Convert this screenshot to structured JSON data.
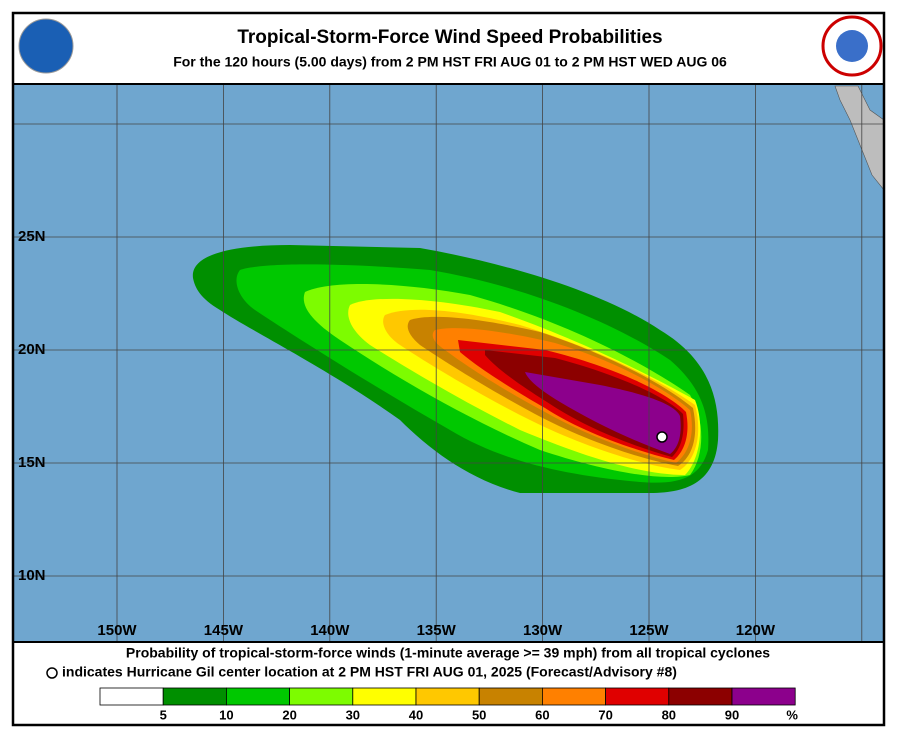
{
  "header": {
    "title": "Tropical-Storm-Force Wind Speed Probabilities",
    "subtitle": "For the 120 hours (5.00 days) from 2 PM HST FRI AUG 01 to 2 PM HST WED AUG 06"
  },
  "map": {
    "lat_labels": [
      "25N",
      "20N",
      "15N",
      "10N"
    ],
    "lon_labels": [
      "150W",
      "145W",
      "140W",
      "135W",
      "130W",
      "125W",
      "120W"
    ]
  },
  "caption": {
    "line1": "Probability of tropical-storm-force winds (1-minute average >= 39 mph) from all tropical cyclones",
    "line2": "indicates Hurricane Gil center location at 2 PM HST FRI AUG 01, 2025 (Forecast/Advisory #8)"
  },
  "legend": {
    "colors": [
      "#ffffff",
      "#008f00",
      "#00c800",
      "#7dfc00",
      "#ffff00",
      "#ffc800",
      "#c88200",
      "#ff8000",
      "#e00000",
      "#8c0000",
      "#8c008c"
    ],
    "labels": [
      5,
      10,
      20,
      30,
      40,
      50,
      60,
      70,
      80,
      90
    ],
    "unit": "%"
  }
}
